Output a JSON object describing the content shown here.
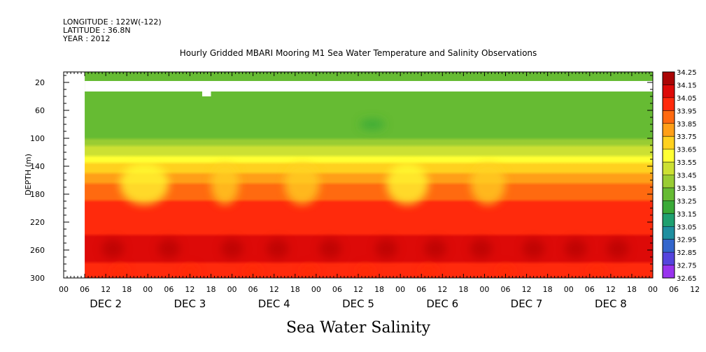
{
  "header": {
    "longitude": "LONGITUDE : 122W(-122)",
    "latitude": "LATITUDE : 36.8N",
    "year": "YEAR : 2012"
  },
  "chart_data": {
    "type": "heatmap",
    "title": "Hourly Gridded MBARI Mooring M1 Sea Water Temperature and Salinity Observations",
    "xlabel": "Sea Water Salinity",
    "ylabel": "DEPTH (m)",
    "x_range_hours": [
      -6,
      162
    ],
    "ylim": [
      300,
      5
    ],
    "y_ticks": [
      20,
      60,
      100,
      140,
      180,
      220,
      260,
      300
    ],
    "x_hour_ticks": [
      "00",
      "06",
      "12",
      "18",
      "00",
      "06",
      "12",
      "18",
      "00",
      "06",
      "12",
      "18",
      "00",
      "06",
      "12",
      "18",
      "00",
      "06",
      "12",
      "18",
      "00",
      "06",
      "12",
      "18",
      "00",
      "06",
      "12",
      "18",
      "00",
      "06",
      "12",
      "18"
    ],
    "x_day_labels": [
      "DEC  2",
      "DEC  3",
      "DEC  4",
      "DEC  5",
      "DEC  6",
      "DEC  7",
      "DEC  8"
    ],
    "colorbar_levels": [
      32.65,
      32.75,
      32.85,
      32.95,
      33.05,
      33.15,
      33.25,
      33.35,
      33.45,
      33.55,
      33.65,
      33.75,
      33.85,
      33.95,
      34.05,
      34.15,
      34.25
    ],
    "colorbar_colors": [
      "#cc22ee",
      "#9933ee",
      "#5544dd",
      "#3366cc",
      "#1f8fa0",
      "#1fa070",
      "#3aaa38",
      "#66bb33",
      "#99cc33",
      "#cce033",
      "#ffff33",
      "#ffd11f",
      "#ff9f18",
      "#ff6a10",
      "#ff2a0c",
      "#dd0a08",
      "#aa0505"
    ],
    "approx_profile": [
      {
        "depth": 10,
        "salinity": 33.38
      },
      {
        "depth": 60,
        "salinity": 33.36
      },
      {
        "depth": 100,
        "salinity": 33.45
      },
      {
        "depth": 120,
        "salinity": 33.62
      },
      {
        "depth": 140,
        "salinity": 33.78
      },
      {
        "depth": 170,
        "salinity": 33.98
      },
      {
        "depth": 200,
        "salinity": 34.08
      },
      {
        "depth": 240,
        "salinity": 34.15
      },
      {
        "depth": 260,
        "salinity": 34.18
      },
      {
        "depth": 300,
        "salinity": 34.12
      }
    ],
    "data_gaps": [
      {
        "x_hours": [
          -6,
          0
        ],
        "depth": [
          5,
          300
        ]
      },
      {
        "x_hours": [
          0,
          162
        ],
        "depth": [
          18,
          33
        ]
      }
    ]
  }
}
